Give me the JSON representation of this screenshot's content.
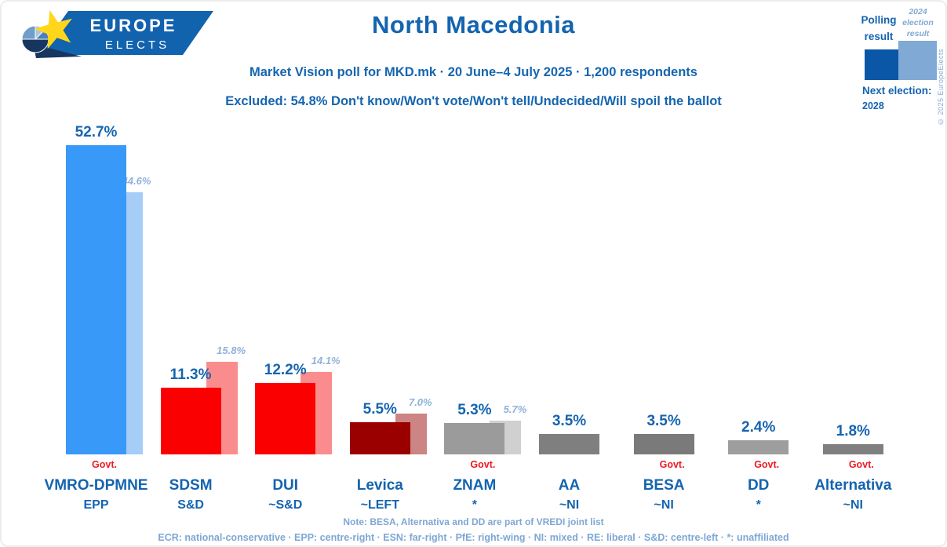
{
  "header": {
    "logo": {
      "line1": "EUROPE",
      "line2": "ELECTS"
    },
    "title": "North Macedonia",
    "subtitle": "Market Vision poll for MKD.mk · 20 June–4 July 2025 · 1,200 respondents",
    "exclusion_note": "Excluded: 54.8% Don't know/Won't vote/Won't tell/Undecided/Will spoil the ballot"
  },
  "legend": {
    "polling_label": "Polling result",
    "election_label": "2024 election result",
    "polling_color": "#0a57a8",
    "election_color": "#80a9d6",
    "next_election_label": "Next election:",
    "next_election_year": "2028",
    "copyright": "© 2025 EuropeElects"
  },
  "chart_data": {
    "type": "bar",
    "title": "North Macedonia — Market Vision poll for MKD.mk, 20 June–4 July 2025",
    "unit": "%",
    "ylim": [
      0,
      55
    ],
    "grid": false,
    "series_labels": [
      "Polling result",
      "2024 election result"
    ],
    "govt_label": "Govt.",
    "parties": [
      {
        "name": "VMRO-DPMNE",
        "group": "EPP",
        "poll": 52.7,
        "election": 44.6,
        "govt": true,
        "poll_color": "#3999f8",
        "election_color": "#a5cdf6"
      },
      {
        "name": "SDSM",
        "group": "S&D",
        "poll": 11.3,
        "election": 15.8,
        "govt": false,
        "poll_color": "#fa0000",
        "election_color": "#fb8c8e"
      },
      {
        "name": "DUI",
        "group": "~S&D",
        "poll": 12.2,
        "election": 14.1,
        "govt": false,
        "poll_color": "#fa0000",
        "election_color": "#fb8c8e"
      },
      {
        "name": "Levica",
        "group": "~LEFT",
        "poll": 5.5,
        "election": 7.0,
        "govt": false,
        "poll_color": "#9b0000",
        "election_color": "#cc8484"
      },
      {
        "name": "ZNAM",
        "group": "*",
        "poll": 5.3,
        "election": 5.7,
        "govt": true,
        "poll_color": "#9b9b9b",
        "election_color": "#d0d0d0"
      },
      {
        "name": "AA",
        "group": "~NI",
        "poll": 3.5,
        "election": null,
        "govt": false,
        "poll_color": "#7f7f7f",
        "election_color": null
      },
      {
        "name": "BESA",
        "group": "~NI",
        "poll": 3.5,
        "election": null,
        "govt": true,
        "poll_color": "#7a7a7a",
        "election_color": null
      },
      {
        "name": "DD",
        "group": "*",
        "poll": 2.4,
        "election": null,
        "govt": true,
        "poll_color": "#9e9e9e",
        "election_color": null
      },
      {
        "name": "Alternativa",
        "group": "~NI",
        "poll": 1.8,
        "election": null,
        "govt": true,
        "poll_color": "#7f7f7f",
        "election_color": null
      }
    ]
  },
  "footer": {
    "note": "Note: BESA, Alternativa and DD are part of VREDI joint list",
    "groups_legend": "ECR: national-conservative · EPP: centre-right · ESN: far-right · PfE: right-wing · NI: mixed · RE: liberal · S&D: centre-left · *: unaffiliated"
  }
}
